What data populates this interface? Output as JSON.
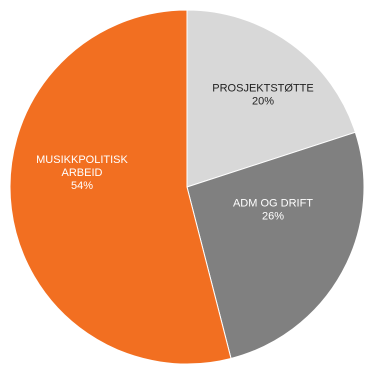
{
  "chart_data": {
    "type": "pie",
    "start_angle_deg": 0,
    "direction": "clockwise",
    "slices": [
      {
        "label": "PROSJEKTSTØTTE",
        "value": 20,
        "value_label": "20%",
        "color": "#d8d8d8",
        "text_color": "#222222"
      },
      {
        "label": "ADM OG DRIFT",
        "value": 26,
        "value_label": "26%",
        "color": "#808080",
        "text_color": "#ffffff"
      },
      {
        "label_lines": [
          "MUSIKKPOLITISK",
          "ARBEID"
        ],
        "value": 54,
        "value_label": "54%",
        "color": "#f26f21",
        "text_color": "#ffffff"
      }
    ]
  }
}
